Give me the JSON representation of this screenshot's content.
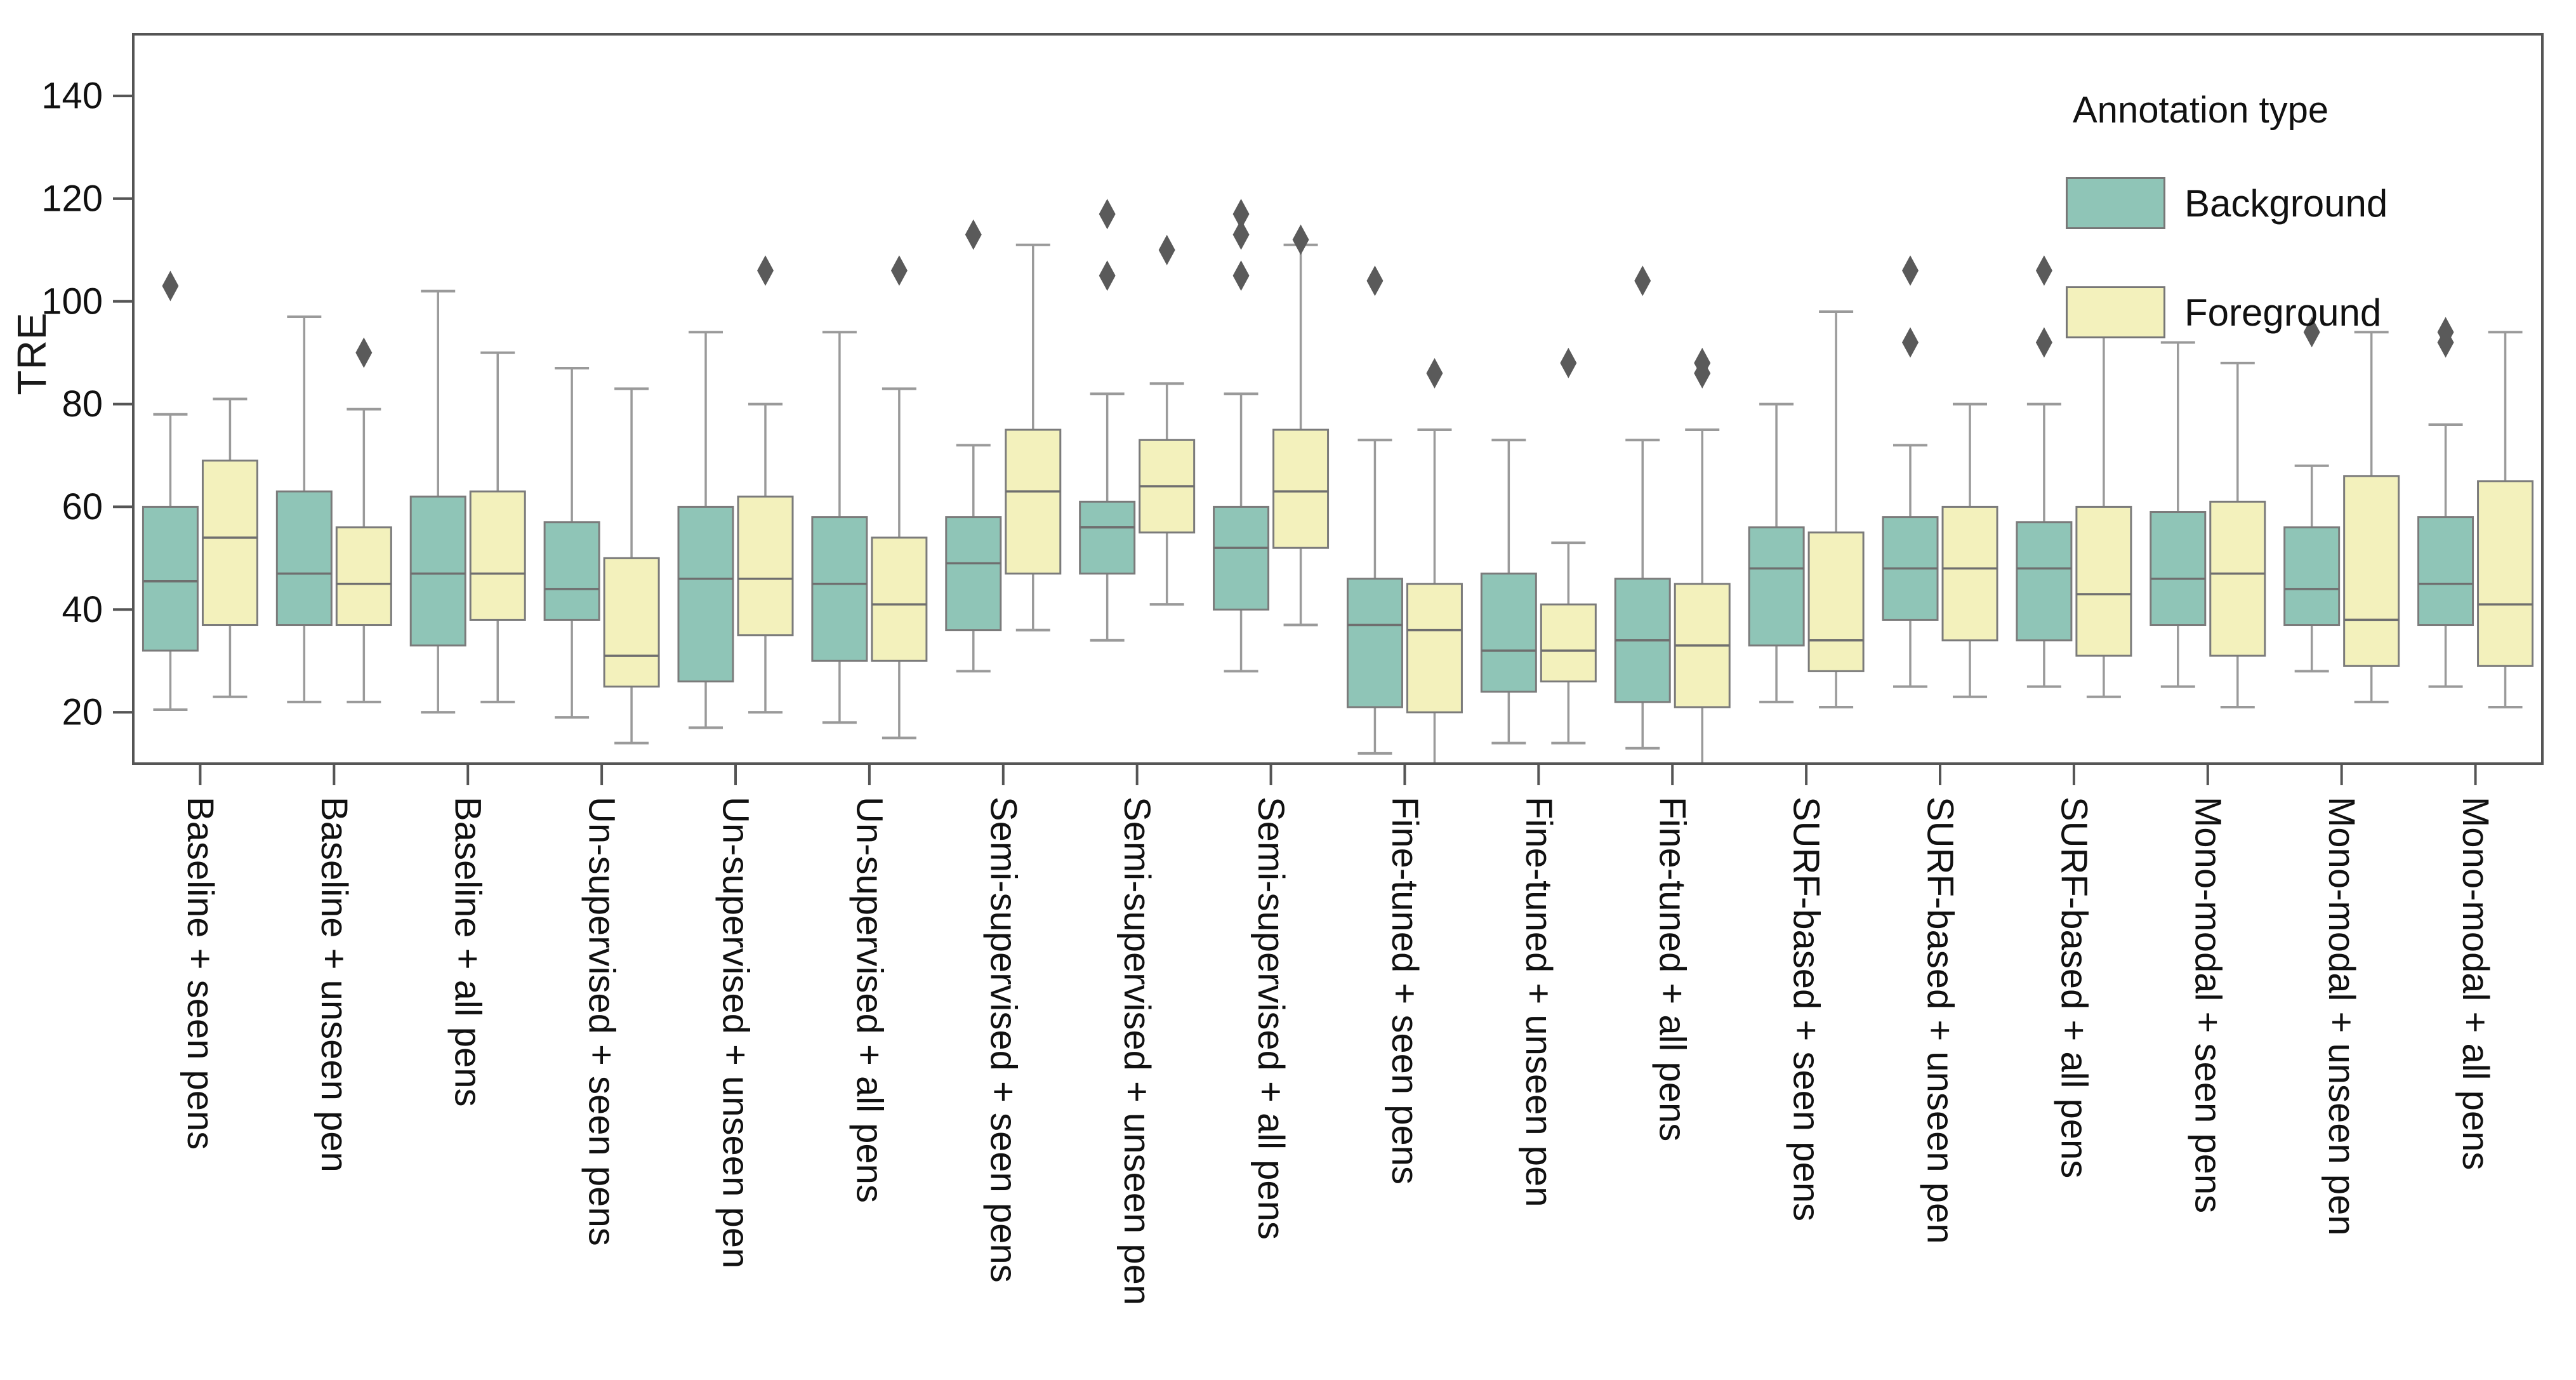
{
  "chart_data": {
    "type": "boxplot",
    "title": "",
    "ylabel": "TRE",
    "xlabel": "",
    "ylim": [
      10,
      152
    ],
    "yticks": [
      "20",
      "40",
      "60",
      "80",
      "100",
      "120",
      "140"
    ],
    "ytick_values": [
      20,
      40,
      60,
      80,
      100,
      120,
      140
    ],
    "grid": "off",
    "legend": {
      "title": "Annotation type",
      "position": "top-right",
      "entries": [
        {
          "label": "Background",
          "color": "#8fc5b7"
        },
        {
          "label": "Foreground",
          "color": "#f3f1bc"
        }
      ]
    },
    "categories": [
      "Baseline + seen pens",
      "Baseline + unseen pen",
      "Baseline + all pens",
      "Un-supervised + seen pens",
      "Un-supervised + unseen pen",
      "Un-supervised + all pens",
      "Semi-supervised + seen pens",
      "Semi-supervised + unseen pen",
      "Semi-supervised + all pens",
      "Fine-tuned + seen pens",
      "Fine-tuned + unseen pen",
      "Fine-tuned + all pens",
      "SURF-based + seen pens",
      "SURF-based + unseen pen",
      "SURF-based + all pens",
      "Mono-modal + seen pens",
      "Mono-modal + unseen pen",
      "Mono-modal + all pens"
    ],
    "series": [
      {
        "name": "Background",
        "color": "#8fc5b7",
        "boxes": [
          {
            "lo": 20.5,
            "q1": 32,
            "med": 45.5,
            "q3": 60,
            "hi": 78,
            "outliers": [
              103
            ]
          },
          {
            "lo": 22,
            "q1": 37,
            "med": 47,
            "q3": 63,
            "hi": 97,
            "outliers": []
          },
          {
            "lo": 20,
            "q1": 33,
            "med": 47,
            "q3": 62,
            "hi": 102,
            "outliers": []
          },
          {
            "lo": 19,
            "q1": 38,
            "med": 44,
            "q3": 57,
            "hi": 87,
            "outliers": []
          },
          {
            "lo": 17,
            "q1": 26,
            "med": 46,
            "q3": 60,
            "hi": 94,
            "outliers": []
          },
          {
            "lo": 18,
            "q1": 30,
            "med": 45,
            "q3": 58,
            "hi": 94,
            "outliers": []
          },
          {
            "lo": 28,
            "q1": 36,
            "med": 49,
            "q3": 58,
            "hi": 72,
            "outliers": [
              113
            ]
          },
          {
            "lo": 34,
            "q1": 47,
            "med": 56,
            "q3": 61,
            "hi": 82,
            "outliers": [
              117,
              105
            ]
          },
          {
            "lo": 28,
            "q1": 40,
            "med": 52,
            "q3": 60,
            "hi": 82,
            "outliers": [
              117,
              113,
              105
            ]
          },
          {
            "lo": 12,
            "q1": 21,
            "med": 37,
            "q3": 46,
            "hi": 73,
            "outliers": [
              104
            ]
          },
          {
            "lo": 14,
            "q1": 24,
            "med": 32,
            "q3": 47,
            "hi": 73,
            "outliers": []
          },
          {
            "lo": 13,
            "q1": 22,
            "med": 34,
            "q3": 46,
            "hi": 73,
            "outliers": [
              104
            ]
          },
          {
            "lo": 22,
            "q1": 33,
            "med": 48,
            "q3": 56,
            "hi": 80,
            "outliers": []
          },
          {
            "lo": 25,
            "q1": 38,
            "med": 48,
            "q3": 58,
            "hi": 72,
            "outliers": [
              106,
              92
            ]
          },
          {
            "lo": 25,
            "q1": 34,
            "med": 48,
            "q3": 57,
            "hi": 80,
            "outliers": [
              106,
              92
            ]
          },
          {
            "lo": 25,
            "q1": 37,
            "med": 46,
            "q3": 59,
            "hi": 92,
            "outliers": []
          },
          {
            "lo": 28,
            "q1": 37,
            "med": 44,
            "q3": 56,
            "hi": 68,
            "outliers": [
              94
            ]
          },
          {
            "lo": 25,
            "q1": 37,
            "med": 45,
            "q3": 58,
            "hi": 76,
            "outliers": [
              94,
              92
            ]
          }
        ]
      },
      {
        "name": "Foreground",
        "color": "#f3f1bc",
        "boxes": [
          {
            "lo": 23,
            "q1": 37,
            "med": 54,
            "q3": 69,
            "hi": 81,
            "outliers": []
          },
          {
            "lo": 22,
            "q1": 37,
            "med": 45,
            "q3": 56,
            "hi": 79,
            "outliers": [
              90
            ]
          },
          {
            "lo": 22,
            "q1": 38,
            "med": 47,
            "q3": 63,
            "hi": 90,
            "outliers": []
          },
          {
            "lo": 14,
            "q1": 25,
            "med": 31,
            "q3": 50,
            "hi": 83,
            "outliers": []
          },
          {
            "lo": 20,
            "q1": 35,
            "med": 46,
            "q3": 62,
            "hi": 80,
            "outliers": [
              106
            ]
          },
          {
            "lo": 15,
            "q1": 30,
            "med": 41,
            "q3": 54,
            "hi": 83,
            "outliers": [
              106
            ]
          },
          {
            "lo": 36,
            "q1": 47,
            "med": 63,
            "q3": 75,
            "hi": 111,
            "outliers": []
          },
          {
            "lo": 41,
            "q1": 55,
            "med": 64,
            "q3": 73,
            "hi": 84,
            "outliers": [
              110
            ]
          },
          {
            "lo": 37,
            "q1": 52,
            "med": 63,
            "q3": 75,
            "hi": 111,
            "outliers": [
              112
            ]
          },
          {
            "lo": 10,
            "q1": 20,
            "med": 36,
            "q3": 45,
            "hi": 75,
            "outliers": [
              86
            ]
          },
          {
            "lo": 14,
            "q1": 26,
            "med": 32,
            "q3": 41,
            "hi": 53,
            "outliers": [
              88
            ]
          },
          {
            "lo": 10,
            "q1": 21,
            "med": 33,
            "q3": 45,
            "hi": 75,
            "outliers": [
              88,
              86
            ]
          },
          {
            "lo": 21,
            "q1": 28,
            "med": 34,
            "q3": 55,
            "hi": 98,
            "outliers": []
          },
          {
            "lo": 23,
            "q1": 34,
            "med": 48,
            "q3": 60,
            "hi": 80,
            "outliers": []
          },
          {
            "lo": 23,
            "q1": 31,
            "med": 43,
            "q3": 60,
            "hi": 98,
            "outliers": []
          },
          {
            "lo": 21,
            "q1": 31,
            "med": 47,
            "q3": 61,
            "hi": 88,
            "outliers": []
          },
          {
            "lo": 22,
            "q1": 29,
            "med": 38,
            "q3": 66,
            "hi": 94,
            "outliers": []
          },
          {
            "lo": 21,
            "q1": 29,
            "med": 41,
            "q3": 65,
            "hi": 94,
            "outliers": []
          }
        ]
      }
    ],
    "style": {
      "spine_color": "#555555",
      "box_stroke": "#7b7b7b",
      "whisker_color": "#9a9a9a",
      "median_color": "#6f6f6f",
      "outlier_color": "#5a5a5a",
      "tick_label_color": "#111111"
    }
  }
}
